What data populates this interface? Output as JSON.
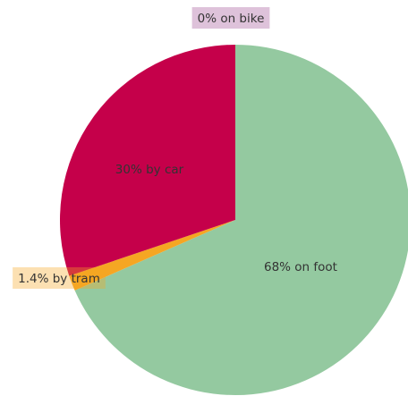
{
  "chart_data": {
    "type": "pie",
    "values": [
      68,
      1.4,
      30,
      0
    ],
    "value_labels": [
      "68% on foot",
      "1.4% by tram",
      "30% by car",
      "0% on bike"
    ],
    "colors": [
      "#94c9a0",
      "#f5a623",
      "#c5004a",
      "#a05195"
    ]
  }
}
